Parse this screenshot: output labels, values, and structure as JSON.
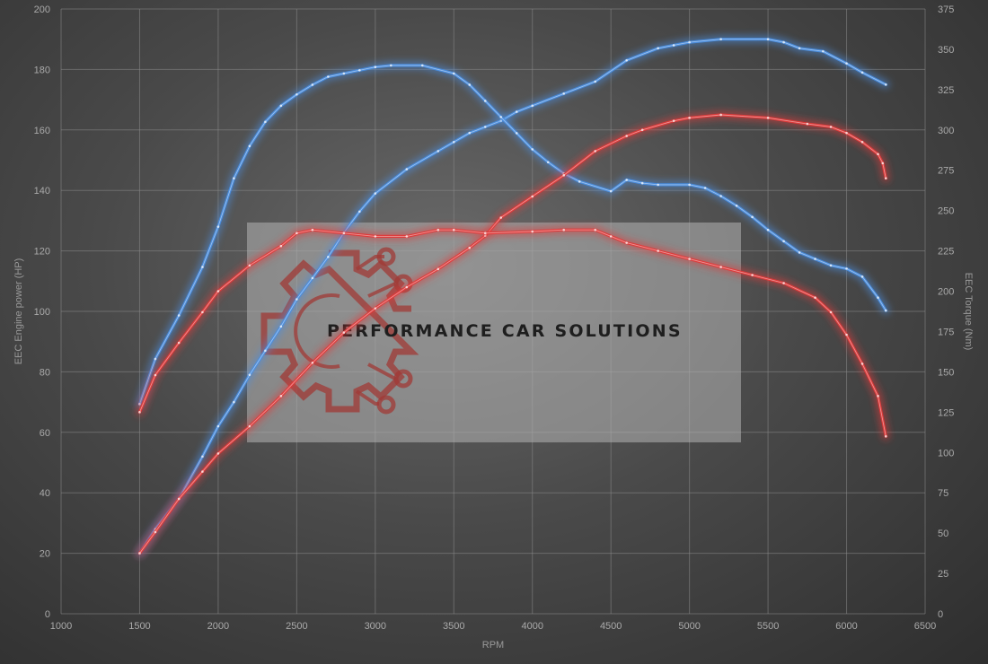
{
  "chart_data": {
    "type": "line",
    "xlabel": "RPM",
    "ylabel_left": "EEC Engine power (HP)",
    "ylabel_right": "EEC Torque (Nm)",
    "xlim": [
      1000,
      6500
    ],
    "ylim_left": [
      0,
      200
    ],
    "ylim_right": [
      0,
      375
    ],
    "x_ticks": [
      1000,
      1500,
      2000,
      2500,
      3000,
      3500,
      4000,
      4500,
      5000,
      5500,
      6000,
      6500
    ],
    "y_ticks_left": [
      0,
      20,
      40,
      60,
      80,
      100,
      120,
      140,
      160,
      180,
      200
    ],
    "y_ticks_right": [
      0,
      25,
      50,
      75,
      100,
      125,
      150,
      175,
      200,
      225,
      250,
      275,
      300,
      325,
      350,
      375
    ],
    "grid": true,
    "series": [
      {
        "axis": "left",
        "color": "#4a8ee0",
        "points": [
          [
            1500,
            20
          ],
          [
            1600,
            28
          ],
          [
            1750,
            38
          ],
          [
            1900,
            52
          ],
          [
            2000,
            62
          ],
          [
            2100,
            70
          ],
          [
            2200,
            79
          ],
          [
            2300,
            87
          ],
          [
            2400,
            95
          ],
          [
            2500,
            104
          ],
          [
            2600,
            111
          ],
          [
            2700,
            118
          ],
          [
            2800,
            126
          ],
          [
            2900,
            133
          ],
          [
            3000,
            139
          ],
          [
            3200,
            147
          ],
          [
            3400,
            153
          ],
          [
            3500,
            156
          ],
          [
            3600,
            159
          ],
          [
            3700,
            161
          ],
          [
            3800,
            163
          ],
          [
            3900,
            166
          ],
          [
            4000,
            168
          ],
          [
            4200,
            172
          ],
          [
            4400,
            176
          ],
          [
            4600,
            183
          ],
          [
            4800,
            187
          ],
          [
            4900,
            188
          ],
          [
            5000,
            189
          ],
          [
            5200,
            190
          ],
          [
            5500,
            190
          ],
          [
            5600,
            189
          ],
          [
            5700,
            187
          ],
          [
            5850,
            186
          ],
          [
            6000,
            182
          ],
          [
            6100,
            179
          ],
          [
            6250,
            175
          ]
        ]
      },
      {
        "axis": "right",
        "color": "#4a8ee0",
        "points": [
          [
            1500,
            130
          ],
          [
            1600,
            158
          ],
          [
            1750,
            185
          ],
          [
            1900,
            215
          ],
          [
            2000,
            240
          ],
          [
            2100,
            270
          ],
          [
            2200,
            290
          ],
          [
            2300,
            305
          ],
          [
            2400,
            315
          ],
          [
            2500,
            322
          ],
          [
            2600,
            328
          ],
          [
            2700,
            333
          ],
          [
            2800,
            335
          ],
          [
            2900,
            337
          ],
          [
            3000,
            339
          ],
          [
            3100,
            340
          ],
          [
            3300,
            340
          ],
          [
            3500,
            335
          ],
          [
            3600,
            328
          ],
          [
            3700,
            318
          ],
          [
            3800,
            308
          ],
          [
            3900,
            298
          ],
          [
            4000,
            288
          ],
          [
            4100,
            280
          ],
          [
            4200,
            273
          ],
          [
            4300,
            268
          ],
          [
            4500,
            262
          ],
          [
            4600,
            269
          ],
          [
            4700,
            267
          ],
          [
            4800,
            266
          ],
          [
            5000,
            266
          ],
          [
            5100,
            264
          ],
          [
            5200,
            259
          ],
          [
            5300,
            253
          ],
          [
            5400,
            246
          ],
          [
            5500,
            238
          ],
          [
            5600,
            231
          ],
          [
            5700,
            224
          ],
          [
            5800,
            220
          ],
          [
            5900,
            216
          ],
          [
            6000,
            214
          ],
          [
            6100,
            209
          ],
          [
            6200,
            196
          ],
          [
            6250,
            188
          ]
        ]
      },
      {
        "axis": "left",
        "color": "#e03a3a",
        "points": [
          [
            1500,
            20
          ],
          [
            1600,
            27
          ],
          [
            1750,
            38
          ],
          [
            1900,
            47
          ],
          [
            2000,
            53
          ],
          [
            2200,
            62
          ],
          [
            2400,
            72
          ],
          [
            2600,
            83
          ],
          [
            2800,
            93
          ],
          [
            3000,
            101
          ],
          [
            3200,
            108
          ],
          [
            3400,
            114
          ],
          [
            3600,
            121
          ],
          [
            3700,
            125
          ],
          [
            3800,
            131
          ],
          [
            4000,
            138
          ],
          [
            4200,
            145
          ],
          [
            4400,
            153
          ],
          [
            4600,
            158
          ],
          [
            4700,
            160
          ],
          [
            4900,
            163
          ],
          [
            5000,
            164
          ],
          [
            5200,
            165
          ],
          [
            5500,
            164
          ],
          [
            5750,
            162
          ],
          [
            5900,
            161
          ],
          [
            6000,
            159
          ],
          [
            6100,
            156
          ],
          [
            6200,
            152
          ],
          [
            6230,
            149
          ],
          [
            6250,
            144
          ]
        ]
      },
      {
        "axis": "right",
        "color": "#e03a3a",
        "points": [
          [
            1500,
            125
          ],
          [
            1600,
            148
          ],
          [
            1750,
            168
          ],
          [
            1900,
            187
          ],
          [
            2000,
            200
          ],
          [
            2200,
            216
          ],
          [
            2400,
            228
          ],
          [
            2500,
            236
          ],
          [
            2600,
            238
          ],
          [
            2800,
            236
          ],
          [
            3000,
            234
          ],
          [
            3200,
            234
          ],
          [
            3400,
            238
          ],
          [
            3500,
            238
          ],
          [
            3700,
            236
          ],
          [
            4000,
            237
          ],
          [
            4200,
            238
          ],
          [
            4400,
            238
          ],
          [
            4500,
            234
          ],
          [
            4600,
            230
          ],
          [
            4800,
            225
          ],
          [
            5000,
            220
          ],
          [
            5200,
            215
          ],
          [
            5400,
            210
          ],
          [
            5600,
            205
          ],
          [
            5800,
            196
          ],
          [
            5900,
            187
          ],
          [
            6000,
            173
          ],
          [
            6100,
            155
          ],
          [
            6200,
            135
          ],
          [
            6250,
            110
          ]
        ]
      }
    ]
  },
  "watermark": {
    "text": "PERFORMANCE CAR SOLUTIONS"
  }
}
